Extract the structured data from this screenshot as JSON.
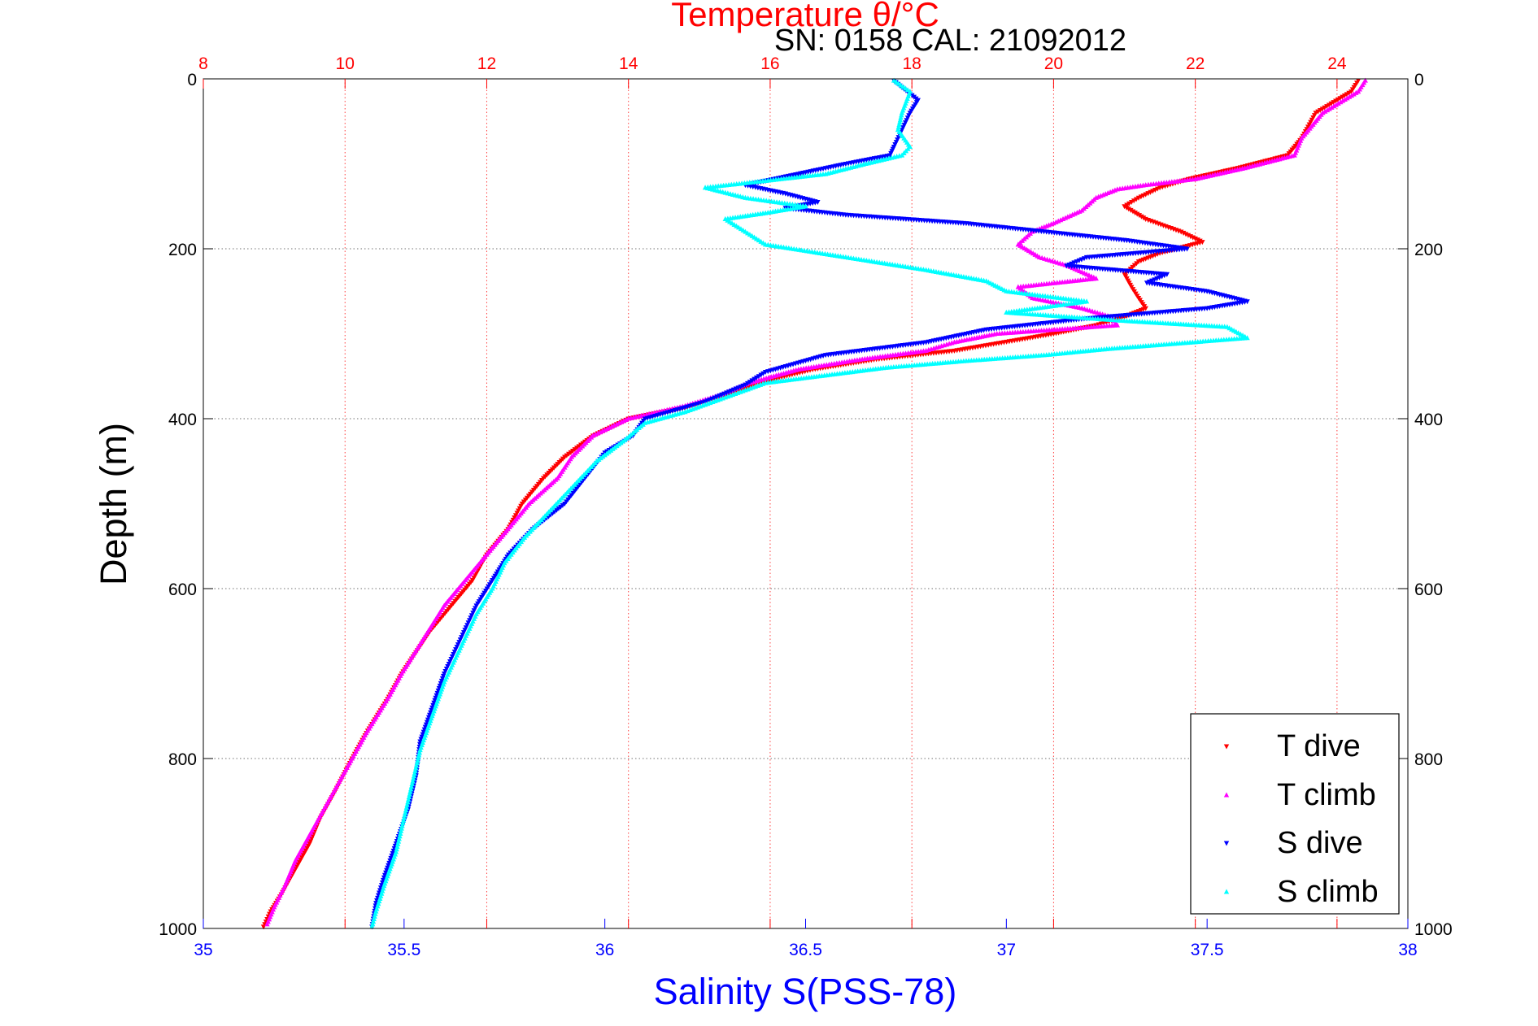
{
  "header": {
    "top_title": "Temperature θ/°C",
    "info": "SN: 0158  CAL: 21092012"
  },
  "colors": {
    "t_dive": "#ff0000",
    "t_climb": "#ff00ff",
    "s_dive": "#0000ff",
    "s_climb": "#00ffff",
    "temp_axis": "#ff0000",
    "sal_axis": "#0000ff"
  },
  "chart_data": {
    "type": "scatter",
    "title": "Temperature θ/°C",
    "subtitle": "SN: 0158  CAL: 21092012",
    "xlabel": "Salinity S(PSS-78)",
    "x2label": "Temperature θ/°C",
    "ylabel": "Depth (m)",
    "xlim": [
      35,
      38
    ],
    "x2lim": [
      8,
      25
    ],
    "ylim": [
      0,
      1000
    ],
    "y_reversed": true,
    "grid": true,
    "legend_position": "bottom-right",
    "x_ticks": [
      "35",
      "35.5",
      "36",
      "36.5",
      "37",
      "37.5",
      "38"
    ],
    "x2_ticks": [
      "8",
      "10",
      "12",
      "14",
      "16",
      "18",
      "20",
      "22",
      "24"
    ],
    "y_ticks": [
      "0",
      "200",
      "400",
      "600",
      "800",
      "1000"
    ],
    "series": [
      {
        "name": "T dive",
        "axis": "temperature",
        "marker": "triangle-down",
        "points": [
          [
            24.3,
            2
          ],
          [
            24.2,
            15
          ],
          [
            23.7,
            40
          ],
          [
            23.5,
            70
          ],
          [
            23.3,
            90
          ],
          [
            22.6,
            105
          ],
          [
            21.9,
            118
          ],
          [
            21.5,
            128
          ],
          [
            21.2,
            140
          ],
          [
            21.0,
            150
          ],
          [
            21.3,
            165
          ],
          [
            21.8,
            180
          ],
          [
            22.1,
            192
          ],
          [
            21.5,
            205
          ],
          [
            21.2,
            215
          ],
          [
            21.0,
            230
          ],
          [
            21.1,
            245
          ],
          [
            21.2,
            258
          ],
          [
            21.3,
            270
          ],
          [
            21.0,
            280
          ],
          [
            20.6,
            290
          ],
          [
            20.0,
            300
          ],
          [
            19.3,
            310
          ],
          [
            18.6,
            320
          ],
          [
            17.5,
            330
          ],
          [
            16.6,
            342
          ],
          [
            15.8,
            358
          ],
          [
            15.4,
            372
          ],
          [
            14.9,
            385
          ],
          [
            14.0,
            400
          ],
          [
            13.5,
            420
          ],
          [
            13.1,
            445
          ],
          [
            12.8,
            470
          ],
          [
            12.5,
            500
          ],
          [
            12.3,
            530
          ],
          [
            12.0,
            560
          ],
          [
            11.8,
            590
          ],
          [
            11.6,
            610
          ],
          [
            11.2,
            650
          ],
          [
            10.8,
            700
          ],
          [
            10.6,
            730
          ],
          [
            10.3,
            770
          ],
          [
            10.1,
            800
          ],
          [
            9.85,
            840
          ],
          [
            9.65,
            870
          ],
          [
            9.5,
            900
          ],
          [
            9.3,
            930
          ],
          [
            9.1,
            960
          ],
          [
            8.95,
            980
          ],
          [
            8.85,
            998
          ]
        ]
      },
      {
        "name": "T climb",
        "axis": "temperature",
        "marker": "triangle-up",
        "points": [
          [
            24.4,
            2
          ],
          [
            24.3,
            15
          ],
          [
            23.8,
            40
          ],
          [
            23.5,
            70
          ],
          [
            23.4,
            90
          ],
          [
            22.7,
            105
          ],
          [
            22.0,
            118
          ],
          [
            21.3,
            125
          ],
          [
            20.9,
            130
          ],
          [
            20.6,
            140
          ],
          [
            20.4,
            155
          ],
          [
            20.0,
            170
          ],
          [
            19.7,
            180
          ],
          [
            19.5,
            195
          ],
          [
            19.8,
            210
          ],
          [
            20.2,
            220
          ],
          [
            20.6,
            235
          ],
          [
            19.5,
            245
          ],
          [
            19.7,
            258
          ],
          [
            20.4,
            270
          ],
          [
            20.8,
            280
          ],
          [
            20.9,
            290
          ],
          [
            19.2,
            300
          ],
          [
            18.6,
            310
          ],
          [
            18.2,
            320
          ],
          [
            17.3,
            330
          ],
          [
            16.4,
            342
          ],
          [
            15.7,
            358
          ],
          [
            15.3,
            372
          ],
          [
            14.8,
            385
          ],
          [
            14.0,
            400
          ],
          [
            13.5,
            420
          ],
          [
            13.2,
            445
          ],
          [
            13.0,
            470
          ],
          [
            12.6,
            500
          ],
          [
            12.3,
            530
          ],
          [
            12.0,
            560
          ],
          [
            11.7,
            590
          ],
          [
            11.4,
            620
          ],
          [
            11.1,
            660
          ],
          [
            10.8,
            700
          ],
          [
            10.6,
            730
          ],
          [
            10.3,
            770
          ],
          [
            10.1,
            800
          ],
          [
            9.9,
            830
          ],
          [
            9.7,
            860
          ],
          [
            9.5,
            890
          ],
          [
            9.3,
            920
          ],
          [
            9.15,
            950
          ],
          [
            9.0,
            975
          ],
          [
            8.9,
            995
          ]
        ]
      },
      {
        "name": "S dive",
        "axis": "salinity",
        "marker": "triangle-down",
        "points": [
          [
            36.72,
            2
          ],
          [
            36.74,
            10
          ],
          [
            36.78,
            25
          ],
          [
            36.76,
            40
          ],
          [
            36.74,
            60
          ],
          [
            36.72,
            80
          ],
          [
            36.71,
            90
          ],
          [
            36.6,
            100
          ],
          [
            36.5,
            110
          ],
          [
            36.42,
            118
          ],
          [
            36.35,
            125
          ],
          [
            36.45,
            135
          ],
          [
            36.53,
            145
          ],
          [
            36.45,
            152
          ],
          [
            36.6,
            160
          ],
          [
            36.9,
            170
          ],
          [
            37.1,
            180
          ],
          [
            37.3,
            190
          ],
          [
            37.45,
            200
          ],
          [
            37.2,
            210
          ],
          [
            37.15,
            220
          ],
          [
            37.4,
            230
          ],
          [
            37.35,
            240
          ],
          [
            37.5,
            250
          ],
          [
            37.6,
            262
          ],
          [
            37.5,
            270
          ],
          [
            37.2,
            282
          ],
          [
            36.95,
            295
          ],
          [
            36.8,
            310
          ],
          [
            36.55,
            325
          ],
          [
            36.4,
            345
          ],
          [
            36.35,
            360
          ],
          [
            36.25,
            380
          ],
          [
            36.1,
            400
          ],
          [
            36.07,
            420
          ],
          [
            36.0,
            440
          ],
          [
            35.95,
            470
          ],
          [
            35.9,
            500
          ],
          [
            35.82,
            530
          ],
          [
            35.76,
            560
          ],
          [
            35.72,
            590
          ],
          [
            35.68,
            620
          ],
          [
            35.64,
            660
          ],
          [
            35.6,
            700
          ],
          [
            35.57,
            740
          ],
          [
            35.54,
            780
          ],
          [
            35.53,
            820
          ],
          [
            35.51,
            860
          ],
          [
            35.48,
            900
          ],
          [
            35.45,
            940
          ],
          [
            35.43,
            970
          ],
          [
            35.42,
            998
          ]
        ]
      },
      {
        "name": "S climb",
        "axis": "salinity",
        "marker": "triangle-up",
        "points": [
          [
            36.72,
            2
          ],
          [
            36.76,
            15
          ],
          [
            36.74,
            40
          ],
          [
            36.73,
            60
          ],
          [
            36.76,
            80
          ],
          [
            36.74,
            90
          ],
          [
            36.65,
            100
          ],
          [
            36.55,
            112
          ],
          [
            36.4,
            120
          ],
          [
            36.25,
            128
          ],
          [
            36.35,
            140
          ],
          [
            36.5,
            150
          ],
          [
            36.4,
            158
          ],
          [
            36.3,
            165
          ],
          [
            36.35,
            180
          ],
          [
            36.4,
            195
          ],
          [
            36.6,
            210
          ],
          [
            36.8,
            225
          ],
          [
            36.95,
            238
          ],
          [
            37.0,
            250
          ],
          [
            37.2,
            262
          ],
          [
            37.0,
            275
          ],
          [
            37.3,
            285
          ],
          [
            37.55,
            292
          ],
          [
            37.6,
            305
          ],
          [
            37.25,
            318
          ],
          [
            37.1,
            325
          ],
          [
            36.9,
            332
          ],
          [
            36.7,
            340
          ],
          [
            36.4,
            358
          ],
          [
            36.3,
            375
          ],
          [
            36.2,
            392
          ],
          [
            36.1,
            405
          ],
          [
            36.05,
            425
          ],
          [
            35.98,
            450
          ],
          [
            35.92,
            480
          ],
          [
            35.86,
            510
          ],
          [
            35.8,
            540
          ],
          [
            35.75,
            570
          ],
          [
            35.72,
            600
          ],
          [
            35.68,
            630
          ],
          [
            35.64,
            670
          ],
          [
            35.6,
            710
          ],
          [
            35.57,
            750
          ],
          [
            35.54,
            790
          ],
          [
            35.52,
            830
          ],
          [
            35.5,
            870
          ],
          [
            35.48,
            910
          ],
          [
            35.45,
            950
          ],
          [
            35.43,
            980
          ],
          [
            35.42,
            998
          ]
        ]
      }
    ]
  }
}
